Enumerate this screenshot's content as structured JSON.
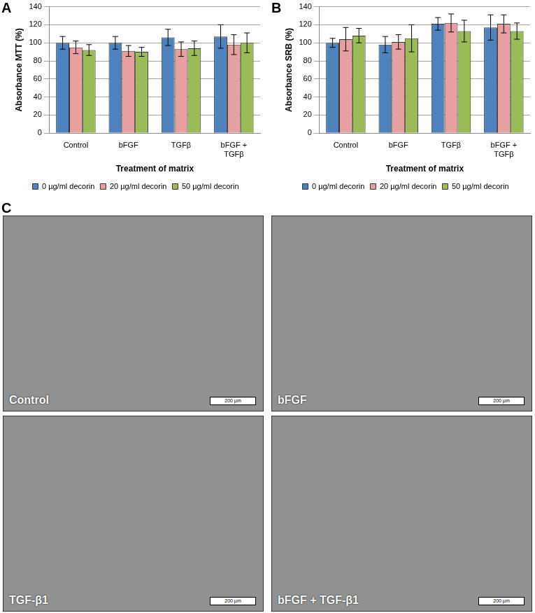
{
  "chart_data": [
    {
      "type": "bar",
      "panel": "A",
      "y_label": "Absorbance MTT (%)",
      "x_label": "Treatment of matrix",
      "categories": [
        "Control",
        "bFGF",
        "TGFβ",
        "bFGF + TGFβ"
      ],
      "series": [
        {
          "name": "0 µg/ml decorin",
          "color": "#4f81bd",
          "values": [
            100,
            100,
            106,
            107
          ],
          "error": [
            7,
            7,
            9,
            13
          ]
        },
        {
          "name": "20 µg/ml decorin",
          "color": "#e6a09f",
          "values": [
            95,
            91,
            93,
            98
          ],
          "error": [
            7,
            6,
            8,
            11
          ]
        },
        {
          "name": "50 µg/ml decorin",
          "color": "#9bbb59",
          "values": [
            92,
            90,
            94,
            100
          ],
          "error": [
            6,
            5,
            8,
            11
          ]
        }
      ],
      "ylim": [
        0,
        140
      ],
      "yticks": [
        0,
        20,
        40,
        60,
        80,
        100,
        120,
        140
      ],
      "grid": true,
      "legend": "bottom"
    },
    {
      "type": "bar",
      "panel": "B",
      "y_label": "Absorbance SRB (%)",
      "x_label": "Treatment of matrix",
      "categories": [
        "Control",
        "bFGF",
        "TGFβ",
        "bFGF + TGFβ"
      ],
      "series": [
        {
          "name": "0 µg/ml decorin",
          "color": "#4f81bd",
          "values": [
            100,
            98,
            121,
            117
          ],
          "error": [
            5,
            9,
            7,
            14
          ]
        },
        {
          "name": "20 µg/ml decorin",
          "color": "#e6a09f",
          "values": [
            104,
            101,
            122,
            121
          ],
          "error": [
            13,
            8,
            10,
            10
          ]
        },
        {
          "name": "50 µg/ml decorin",
          "color": "#9bbb59",
          "values": [
            108,
            105,
            113,
            113
          ],
          "error": [
            8,
            15,
            12,
            9
          ]
        }
      ],
      "ylim": [
        0,
        140
      ],
      "yticks": [
        0,
        20,
        40,
        60,
        80,
        100,
        120,
        140
      ],
      "grid": true,
      "legend": "bottom"
    }
  ],
  "micrographs": {
    "panel": "C",
    "images": [
      {
        "label": "Control",
        "scale_bar": "200 µm"
      },
      {
        "label": "bFGF",
        "scale_bar": "200 µm"
      },
      {
        "label": "TGF-β1",
        "scale_bar": "200 µm"
      },
      {
        "label": "bFGF + TGF-β1",
        "scale_bar": "200 µm"
      }
    ]
  }
}
